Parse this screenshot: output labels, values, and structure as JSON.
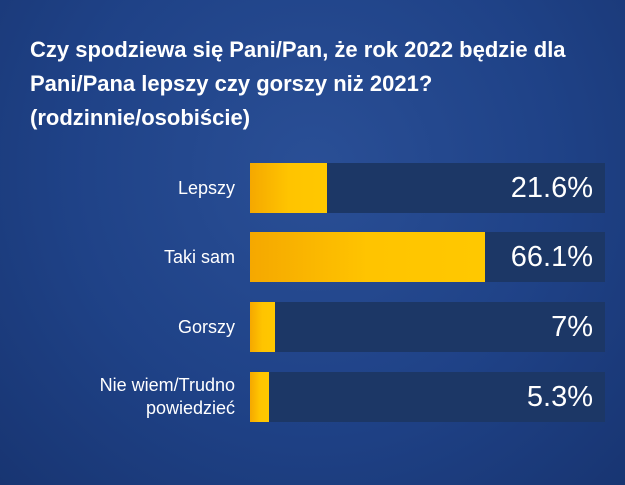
{
  "chart_data": {
    "type": "bar",
    "orientation": "horizontal",
    "title": "Czy spodziewa się Pani/Pan, że rok 2022 będzie dla Pani/Pana lepszy czy gorszy niż 2021? (rodzinnie/osobiście)",
    "categories": [
      "Lepszy",
      "Taki sam",
      "Gorszy",
      "Nie wiem/Trudno powiedzieć"
    ],
    "values": [
      21.6,
      66.1,
      7,
      5.3
    ],
    "value_labels": [
      "21.6%",
      "66.1%",
      "7%",
      "5.3%"
    ],
    "unit": "%",
    "xlim": [
      0,
      100
    ],
    "grid": false,
    "colors": {
      "bar": "#ffc400",
      "track": "#1c3766",
      "background": "#1f4287",
      "text": "#ffffff"
    }
  }
}
